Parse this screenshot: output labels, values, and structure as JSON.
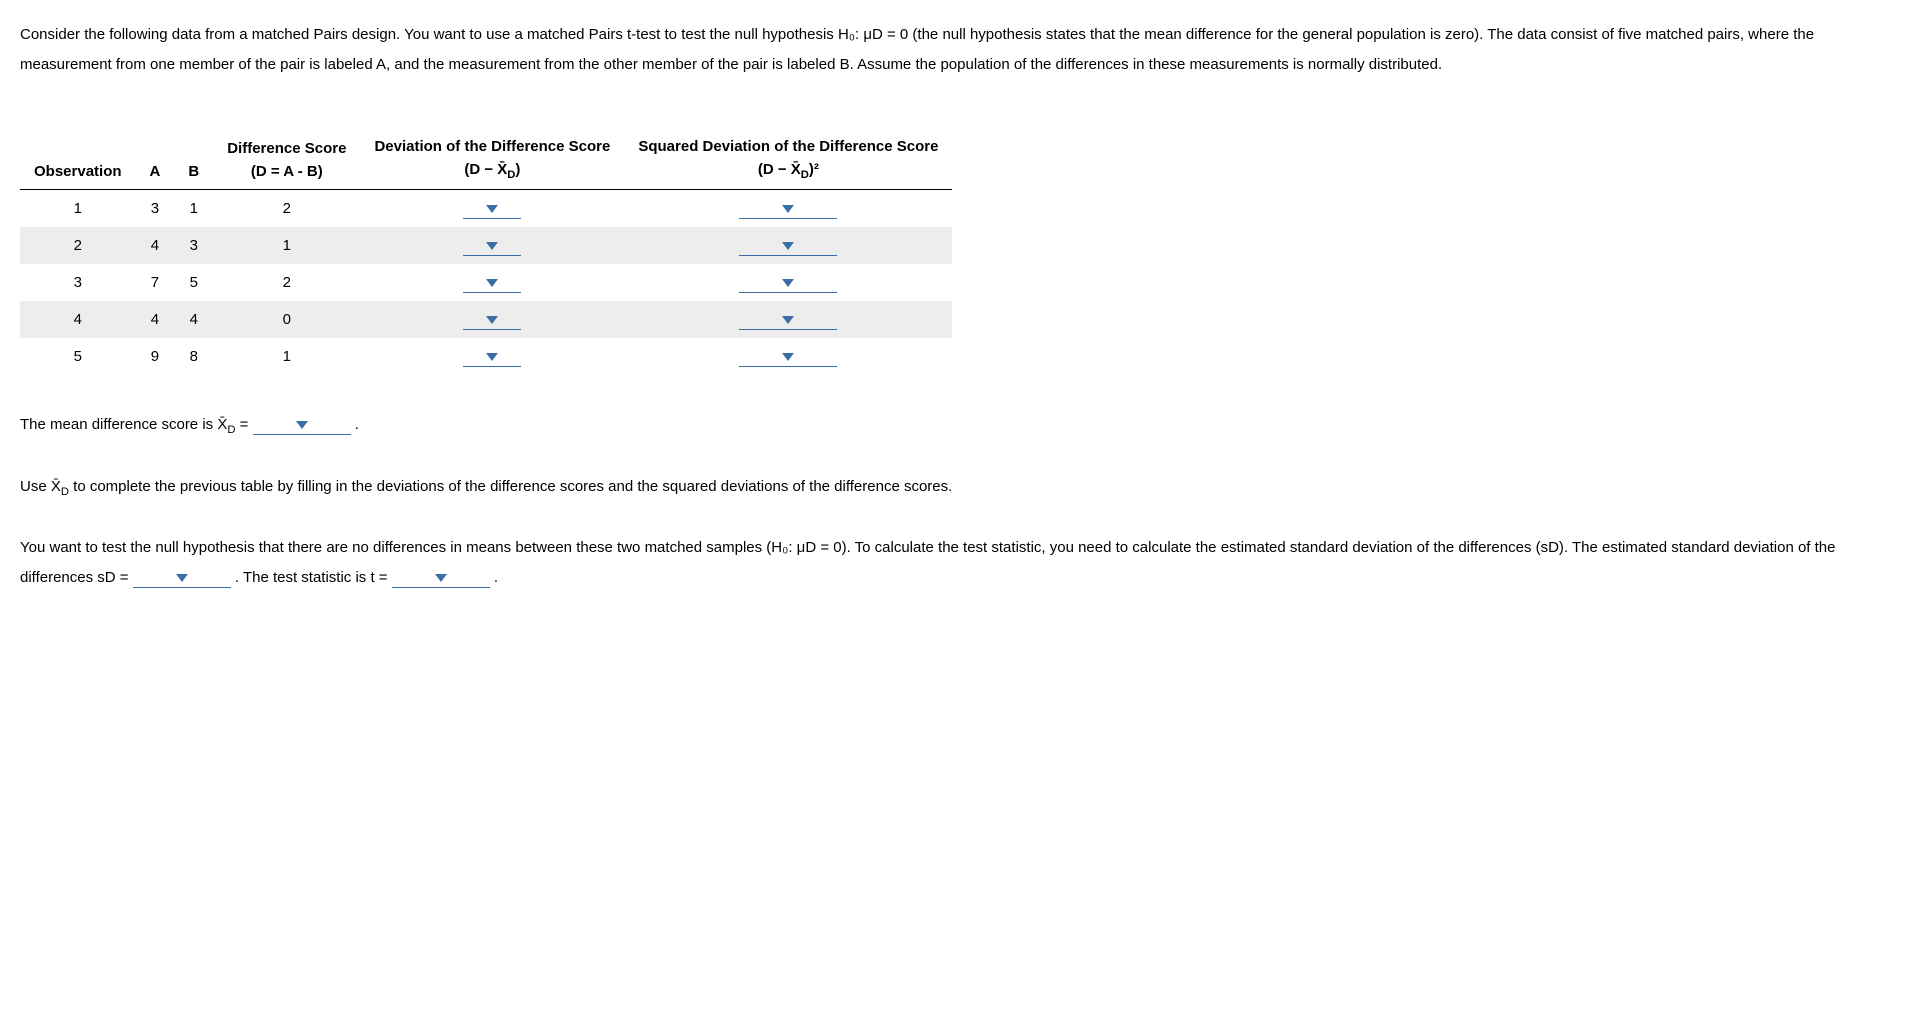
{
  "colors": {
    "caret": "#3a6ea5",
    "underline": "#3a6ea5",
    "row_alt_bg": "#ededed"
  },
  "intro": {
    "text": "Consider the following data from a matched Pairs design. You want to use a matched Pairs t-test to test the null hypothesis H₀: μD = 0 (the null hypothesis states that the mean difference for the general population is zero). The data consist of five matched pairs, where the measurement from one member of the pair is labeled A, and the measurement from the other member of the pair is labeled B. Assume the population of the differences in these measurements is normally distributed."
  },
  "table": {
    "headers": {
      "obs": "Observation",
      "A": "A",
      "B": "B",
      "diff_title": "Difference Score",
      "diff_sub": "(D = A - B)",
      "dev_title": "Deviation of the Difference Score",
      "dev_sub_prefix": "(D − ",
      "dev_sub_suffix": ")",
      "sqdev_title": "Squared Deviation of the Difference Score",
      "sqdev_sub_prefix": "(D − ",
      "sqdev_sub_suffix": ")²"
    },
    "rows": [
      {
        "obs": "1",
        "A": "3",
        "B": "1",
        "D": "2"
      },
      {
        "obs": "2",
        "A": "4",
        "B": "3",
        "D": "1"
      },
      {
        "obs": "3",
        "A": "7",
        "B": "5",
        "D": "2"
      },
      {
        "obs": "4",
        "A": "4",
        "B": "4",
        "D": "0"
      },
      {
        "obs": "5",
        "A": "9",
        "B": "8",
        "D": "1"
      }
    ]
  },
  "mean_line": {
    "prefix": "The mean difference score is ",
    "symbol_text": "X̄",
    "sub": "D",
    "equals": " = ",
    "period": " ."
  },
  "instruct_line": {
    "prefix": "Use ",
    "rest": " to complete the previous table by filling in the deviations of the difference scores and the squared deviations of the difference scores."
  },
  "test_para": {
    "p1": "You want to test the null hypothesis that there are no differences in means between these two matched samples (H₀: μD = 0). To calculate the test statistic, you need to calculate the estimated standard deviation of the differences (sD). The estimated standard deviation of the differences sD = ",
    "p2": " . The test statistic is t = ",
    "p3": " ."
  }
}
